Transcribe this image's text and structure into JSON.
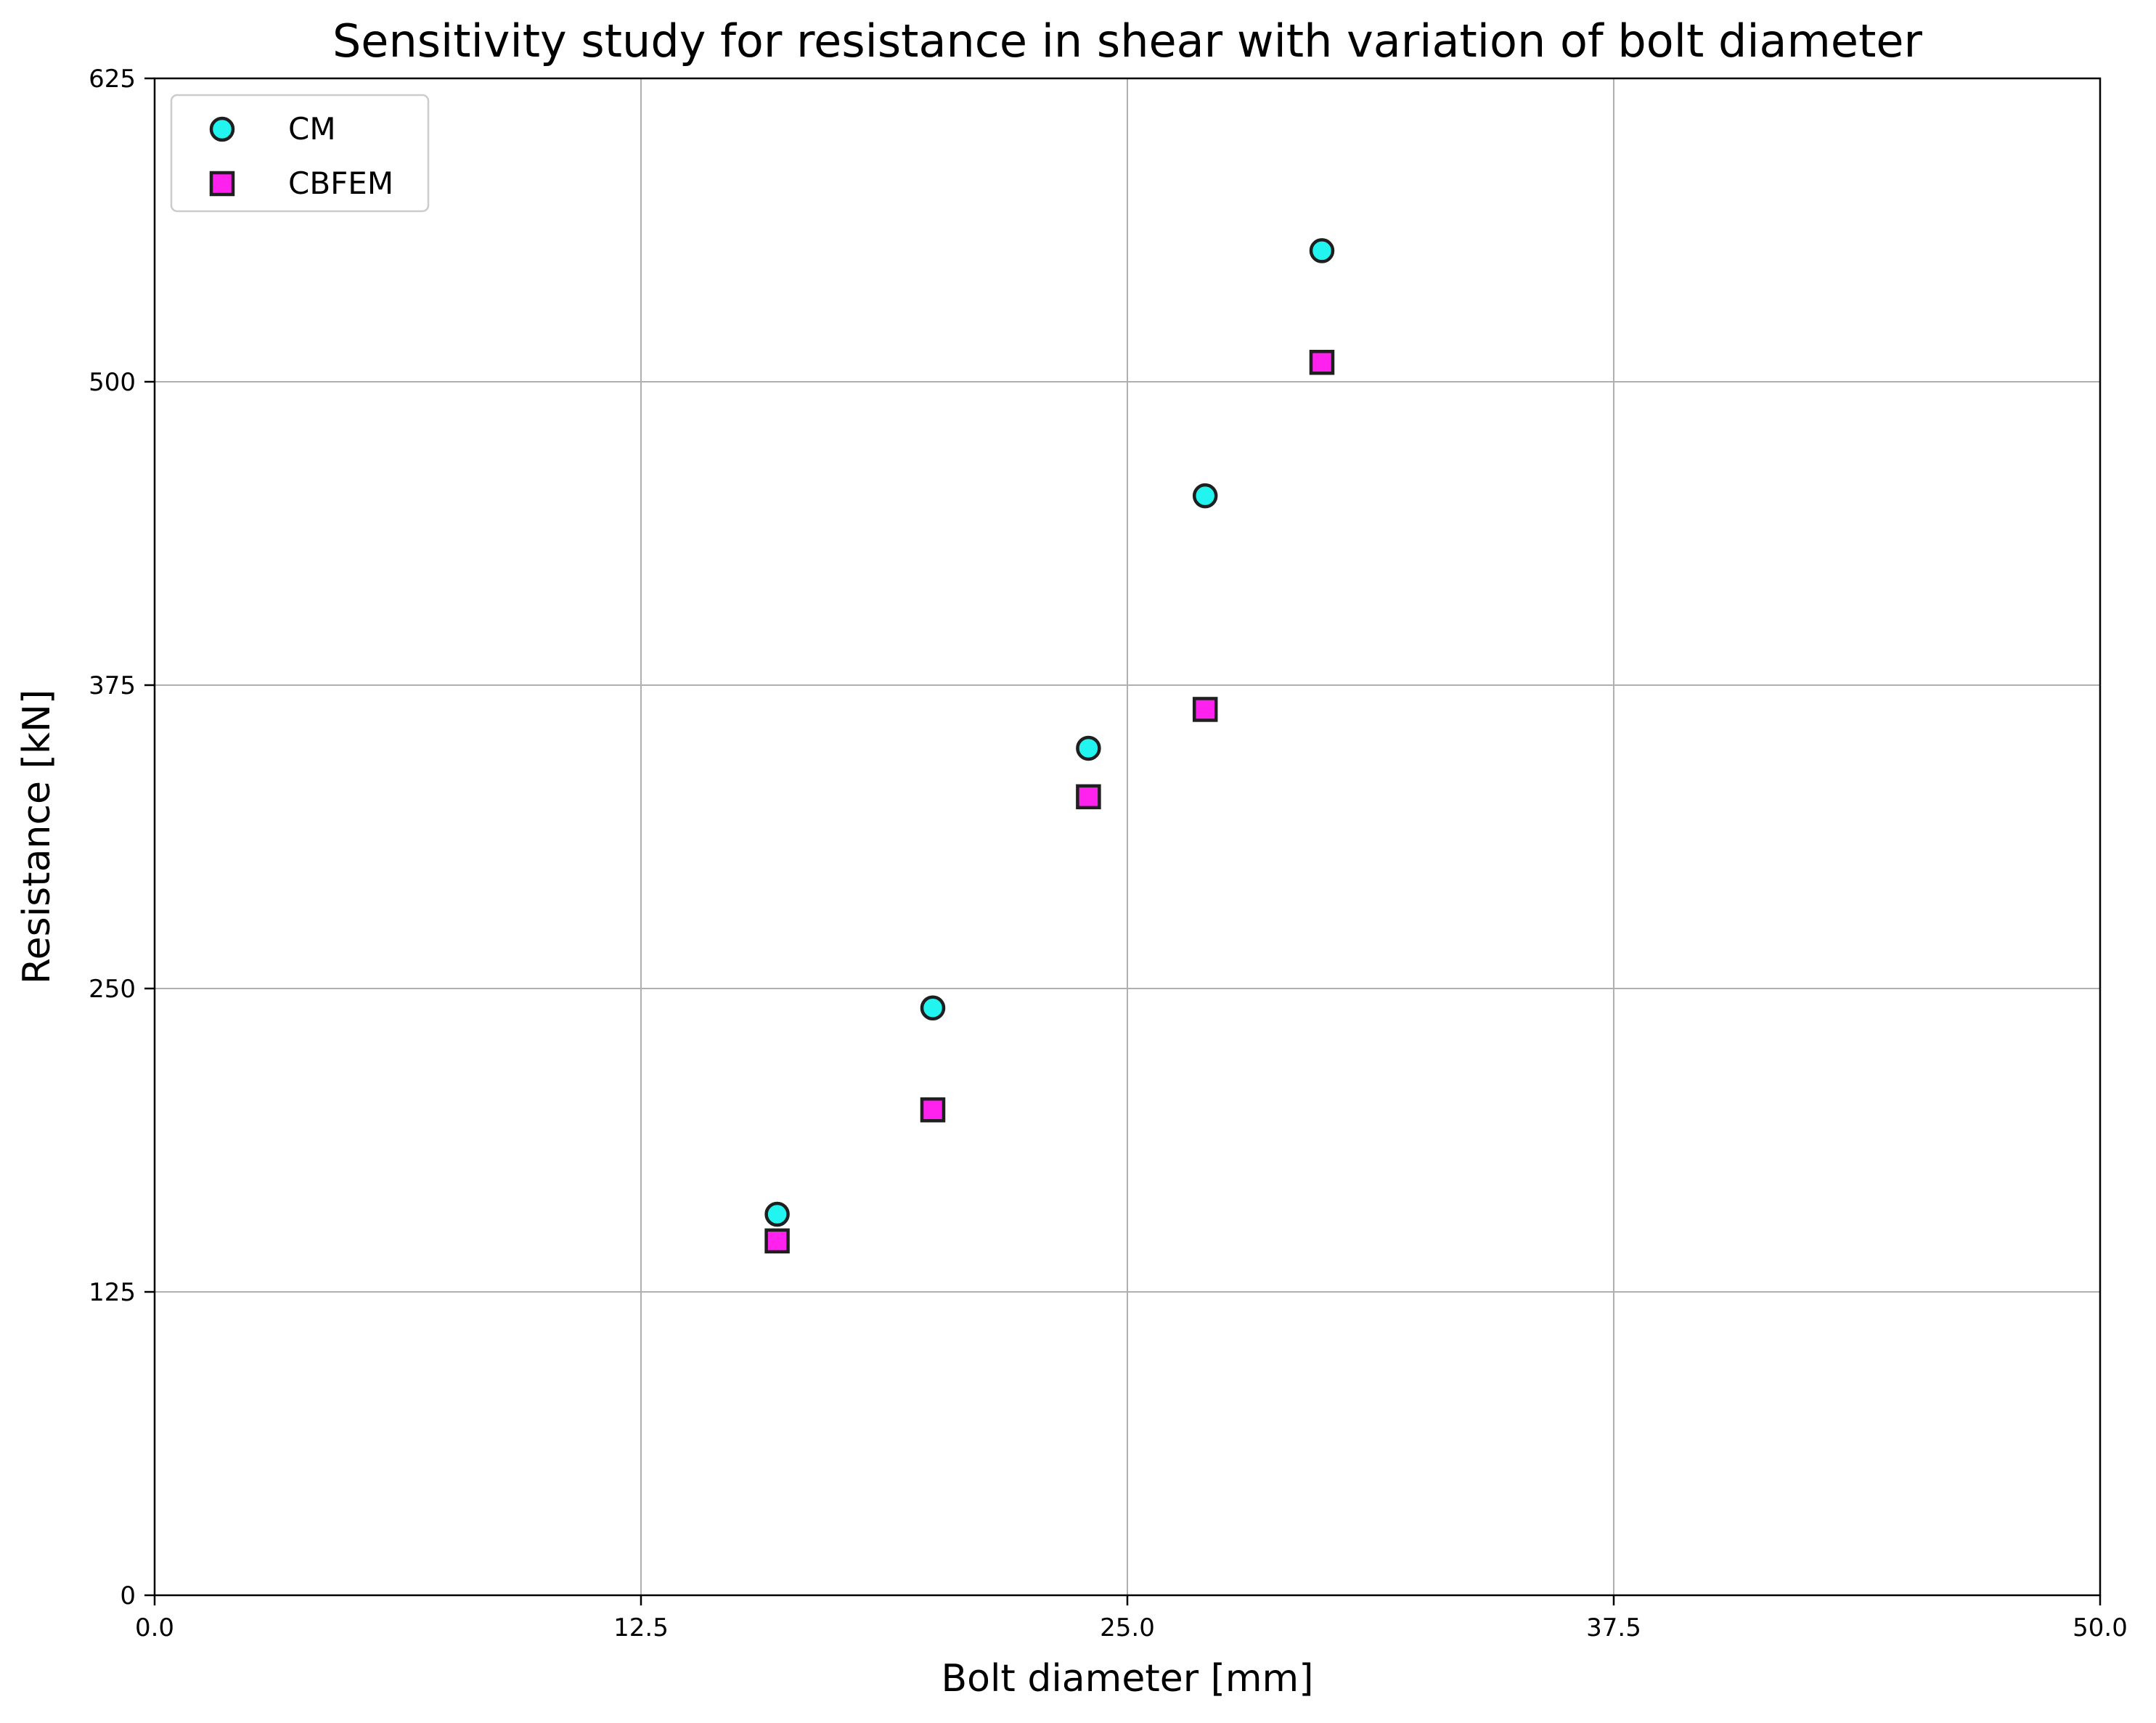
{
  "chart_data": {
    "type": "scatter",
    "title": "Sensitivity study for resistance in shear with variation of bolt diameter",
    "xlabel": "Bolt diameter [mm]",
    "ylabel": "Resistance [kN]",
    "xlim": [
      0,
      50
    ],
    "ylim": [
      0,
      625
    ],
    "xticks": [
      0,
      12.5,
      25,
      37.5,
      50
    ],
    "xtick_labels": [
      "0.0",
      "12.5",
      "25.0",
      "37.5",
      "50.0"
    ],
    "yticks": [
      0,
      125,
      250,
      375,
      500,
      625
    ],
    "ytick_labels": [
      "0",
      "125",
      "250",
      "375",
      "500",
      "625"
    ],
    "grid": true,
    "legend_position": "top-left",
    "series": [
      {
        "name": "CM",
        "marker": "circle",
        "color": "#22f5f0",
        "x": [
          16,
          20,
          24,
          27,
          30
        ],
        "y": [
          157,
          242,
          349,
          453,
          554
        ]
      },
      {
        "name": "CBFEM",
        "marker": "square",
        "color": "#ff22ee",
        "x": [
          16,
          20,
          24,
          27,
          30
        ],
        "y": [
          146,
          200,
          329,
          365,
          508
        ]
      }
    ]
  }
}
